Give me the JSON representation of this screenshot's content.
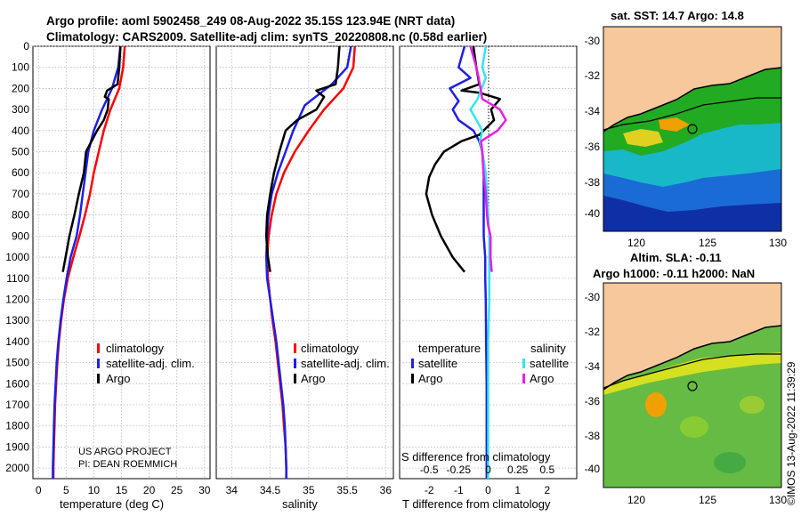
{
  "header": {
    "title_line1": "Argo profile: aoml 5902458_249 08-Aug-2022 35.15S 123.94E (NRT data)",
    "title_line2": "Climatology: CARS2009. Satellite-adj clim: synTS_20220808.nc (0.58d earlier)"
  },
  "colors": {
    "climatology": "#ff0000",
    "satellite": "#1f1fe6",
    "argo": "#000000",
    "sal_satellite": "#33e6f0",
    "sal_argo": "#e61ee6",
    "land": "#f7c89c"
  },
  "depth_axis": {
    "ticks": [
      0,
      100,
      200,
      300,
      400,
      500,
      600,
      700,
      800,
      900,
      1000,
      1100,
      1200,
      1300,
      1400,
      1500,
      1600,
      1700,
      1800,
      1900,
      2000
    ],
    "range": [
      0,
      2050
    ]
  },
  "chart_data": [
    {
      "type": "line",
      "id": "temperature",
      "xlabel": "temperature (deg C)",
      "ylabel": "depth",
      "xlim": [
        -1,
        31
      ],
      "xticks": [
        0,
        5,
        10,
        15,
        20,
        25,
        30
      ],
      "legend": [
        "climatology",
        "satellite-adj. clim.",
        "Argo"
      ],
      "series": [
        {
          "name": "climatology",
          "color": "#ff0000",
          "points": [
            [
              15.6,
              0
            ],
            [
              15.3,
              100
            ],
            [
              14.6,
              200
            ],
            [
              13.0,
              300
            ],
            [
              11.8,
              400
            ],
            [
              10.9,
              500
            ],
            [
              10.0,
              600
            ],
            [
              9.3,
              700
            ],
            [
              8.4,
              800
            ],
            [
              7.4,
              900
            ],
            [
              6.3,
              1000
            ],
            [
              5.3,
              1100
            ],
            [
              4.6,
              1200
            ],
            [
              4.1,
              1300
            ],
            [
              3.7,
              1400
            ],
            [
              3.4,
              1500
            ],
            [
              3.2,
              1600
            ],
            [
              3.0,
              1700
            ],
            [
              2.9,
              1800
            ],
            [
              2.8,
              1900
            ],
            [
              2.7,
              2000
            ],
            [
              2.7,
              2050
            ]
          ]
        },
        {
          "name": "satellite-adj. clim.",
          "color": "#1f1fe6",
          "points": [
            [
              14.8,
              0
            ],
            [
              14.4,
              100
            ],
            [
              13.3,
              200
            ],
            [
              11.5,
              300
            ],
            [
              10.0,
              400
            ],
            [
              9.0,
              500
            ],
            [
              8.5,
              600
            ],
            [
              8.0,
              700
            ],
            [
              7.5,
              800
            ],
            [
              6.9,
              900
            ],
            [
              5.8,
              1000
            ],
            [
              5.1,
              1100
            ],
            [
              4.5,
              1200
            ],
            [
              4.0,
              1300
            ],
            [
              3.6,
              1400
            ],
            [
              3.3,
              1500
            ],
            [
              3.1,
              1600
            ],
            [
              2.9,
              1700
            ],
            [
              2.8,
              1800
            ],
            [
              2.7,
              1900
            ],
            [
              2.6,
              2000
            ],
            [
              2.6,
              2050
            ]
          ]
        },
        {
          "name": "Argo",
          "color": "#000000",
          "points": [
            [
              14.8,
              0
            ],
            [
              14.6,
              100
            ],
            [
              14.3,
              180
            ],
            [
              12.4,
              210
            ],
            [
              12.0,
              240
            ],
            [
              12.7,
              250
            ],
            [
              12.5,
              300
            ],
            [
              11.8,
              350
            ],
            [
              10.6,
              400
            ],
            [
              9.6,
              450
            ],
            [
              8.6,
              500
            ],
            [
              8.2,
              600
            ],
            [
              7.3,
              700
            ],
            [
              6.5,
              800
            ],
            [
              5.6,
              900
            ],
            [
              4.9,
              1000
            ],
            [
              4.4,
              1070
            ]
          ]
        }
      ]
    },
    {
      "type": "line",
      "id": "salinity",
      "xlabel": "salinity",
      "ylabel": "depth",
      "xlim": [
        33.8,
        36.1
      ],
      "xticks": [
        34,
        34.5,
        35,
        35.5,
        36
      ],
      "legend": [
        "climatology",
        "satellite-adj. clim.",
        "Argo"
      ],
      "series": [
        {
          "name": "climatology",
          "color": "#ff0000",
          "points": [
            [
              35.6,
              0
            ],
            [
              35.58,
              100
            ],
            [
              35.45,
              200
            ],
            [
              35.2,
              300
            ],
            [
              35.0,
              400
            ],
            [
              34.82,
              500
            ],
            [
              34.68,
              600
            ],
            [
              34.58,
              700
            ],
            [
              34.52,
              800
            ],
            [
              34.48,
              900
            ],
            [
              34.46,
              1000
            ],
            [
              34.47,
              1100
            ],
            [
              34.5,
              1200
            ],
            [
              34.53,
              1300
            ],
            [
              34.57,
              1400
            ],
            [
              34.6,
              1500
            ],
            [
              34.63,
              1600
            ],
            [
              34.66,
              1700
            ],
            [
              34.68,
              1800
            ],
            [
              34.7,
              1900
            ],
            [
              34.71,
              2000
            ],
            [
              34.71,
              2050
            ]
          ]
        },
        {
          "name": "satellite-adj. clim.",
          "color": "#1f1fe6",
          "points": [
            [
              35.55,
              0
            ],
            [
              35.5,
              100
            ],
            [
              35.3,
              180
            ],
            [
              34.95,
              280
            ],
            [
              34.8,
              400
            ],
            [
              34.7,
              500
            ],
            [
              34.6,
              600
            ],
            [
              34.52,
              700
            ],
            [
              34.48,
              800
            ],
            [
              34.46,
              900
            ],
            [
              34.45,
              1000
            ],
            [
              34.46,
              1100
            ],
            [
              34.5,
              1200
            ],
            [
              34.54,
              1300
            ],
            [
              34.58,
              1400
            ],
            [
              34.61,
              1500
            ],
            [
              34.64,
              1600
            ],
            [
              34.67,
              1700
            ],
            [
              34.69,
              1800
            ],
            [
              34.7,
              1900
            ],
            [
              34.71,
              2000
            ],
            [
              34.71,
              2050
            ]
          ]
        },
        {
          "name": "Argo",
          "color": "#000000",
          "points": [
            [
              35.4,
              0
            ],
            [
              35.38,
              100
            ],
            [
              35.35,
              180
            ],
            [
              35.1,
              210
            ],
            [
              35.2,
              240
            ],
            [
              35.1,
              300
            ],
            [
              34.85,
              350
            ],
            [
              34.7,
              400
            ],
            [
              34.62,
              500
            ],
            [
              34.55,
              600
            ],
            [
              34.5,
              700
            ],
            [
              34.46,
              800
            ],
            [
              34.45,
              900
            ],
            [
              34.47,
              1000
            ],
            [
              34.5,
              1070
            ]
          ]
        }
      ]
    },
    {
      "type": "line",
      "id": "difference",
      "xlabel": "T difference from climatology",
      "xlabel_top": "S difference from climatology",
      "xlim": [
        -3,
        3
      ],
      "xticks": [
        -2,
        -1,
        0,
        1,
        2
      ],
      "sticks": [
        -0.5,
        -0.25,
        0,
        0.25,
        0.5
      ],
      "stick_labels": [
        "-0.5",
        "-0.25",
        "0",
        "0.25",
        "0.5"
      ],
      "legend_groups": [
        "temperature",
        "salinity"
      ],
      "legend": [
        "satellite",
        "Argo",
        "satellite",
        "Argo"
      ],
      "series": [
        {
          "name": "temperature satellite",
          "color": "#1f1fe6",
          "axis": "T",
          "points": [
            [
              -0.8,
              0
            ],
            [
              -1.0,
              100
            ],
            [
              -0.6,
              150
            ],
            [
              -1.3,
              200
            ],
            [
              -1.0,
              260
            ],
            [
              -1.2,
              300
            ],
            [
              -1.0,
              350
            ],
            [
              -0.5,
              400
            ],
            [
              -0.3,
              450
            ],
            [
              -0.2,
              500
            ],
            [
              -0.15,
              600
            ],
            [
              -0.15,
              700
            ],
            [
              -0.15,
              800
            ],
            [
              -0.15,
              900
            ],
            [
              -0.1,
              1000
            ],
            [
              -0.1,
              1100
            ],
            [
              -0.08,
              1200
            ],
            [
              -0.07,
              1400
            ],
            [
              -0.05,
              1600
            ],
            [
              -0.05,
              1800
            ],
            [
              -0.05,
              2000
            ],
            [
              -0.05,
              2050
            ]
          ]
        },
        {
          "name": "temperature Argo",
          "color": "#000000",
          "axis": "T",
          "points": [
            [
              -0.5,
              0
            ],
            [
              -0.4,
              100
            ],
            [
              -0.3,
              180
            ],
            [
              -0.9,
              210
            ],
            [
              -0.3,
              220
            ],
            [
              0.4,
              250
            ],
            [
              0.1,
              300
            ],
            [
              0.2,
              350
            ],
            [
              -0.3,
              420
            ],
            [
              -0.9,
              450
            ],
            [
              -1.5,
              500
            ],
            [
              -1.8,
              560
            ],
            [
              -2.0,
              620
            ],
            [
              -2.1,
              700
            ],
            [
              -1.9,
              800
            ],
            [
              -1.6,
              900
            ],
            [
              -1.2,
              1000
            ],
            [
              -0.8,
              1070
            ]
          ]
        },
        {
          "name": "salinity satellite",
          "color": "#33e6f0",
          "axis": "S",
          "points": [
            [
              -0.02,
              0
            ],
            [
              -0.05,
              100
            ],
            [
              -0.02,
              150
            ],
            [
              -0.09,
              250
            ],
            [
              -0.15,
              300
            ],
            [
              -0.09,
              360
            ],
            [
              -0.05,
              400
            ],
            [
              -0.07,
              450
            ],
            [
              -0.05,
              500
            ],
            [
              -0.02,
              600
            ],
            [
              -0.01,
              700
            ],
            [
              0.0,
              800
            ],
            [
              0.01,
              900
            ],
            [
              0.01,
              1000
            ],
            [
              0.01,
              1100
            ],
            [
              0.01,
              1200
            ],
            [
              0.0,
              1400
            ],
            [
              0.0,
              1600
            ],
            [
              0.0,
              1800
            ],
            [
              0.0,
              2000
            ],
            [
              0.0,
              2050
            ]
          ]
        },
        {
          "name": "salinity Argo",
          "color": "#e61ee6",
          "axis": "S",
          "points": [
            [
              -0.15,
              0
            ],
            [
              -0.1,
              100
            ],
            [
              -0.08,
              150
            ],
            [
              -0.05,
              250
            ],
            [
              0.1,
              300
            ],
            [
              0.15,
              350
            ],
            [
              0.08,
              400
            ],
            [
              -0.06,
              450
            ],
            [
              -0.05,
              500
            ],
            [
              -0.04,
              600
            ],
            [
              -0.02,
              700
            ],
            [
              -0.01,
              800
            ],
            [
              0.0,
              850
            ],
            [
              0.02,
              900
            ],
            [
              0.02,
              1000
            ],
            [
              0.03,
              1070
            ]
          ]
        }
      ]
    }
  ],
  "notes": {
    "project": "US ARGO PROJECT",
    "pi": "PI: DEAN ROEMMICH"
  },
  "maps": {
    "top_title": "sat. SST: 14.7 Argo: 14.8",
    "bottom_title1": "Altim. SLA: -0.11",
    "bottom_title2": "Argo h1000: -0.11 h2000: NaN",
    "lat_ticks": [
      "-30",
      "-32",
      "-34",
      "-36",
      "-38",
      "-40"
    ],
    "lon_ticks": [
      "120",
      "125",
      "130"
    ],
    "copyright": "©IMOS 13-Aug-2022 11:39:29"
  }
}
